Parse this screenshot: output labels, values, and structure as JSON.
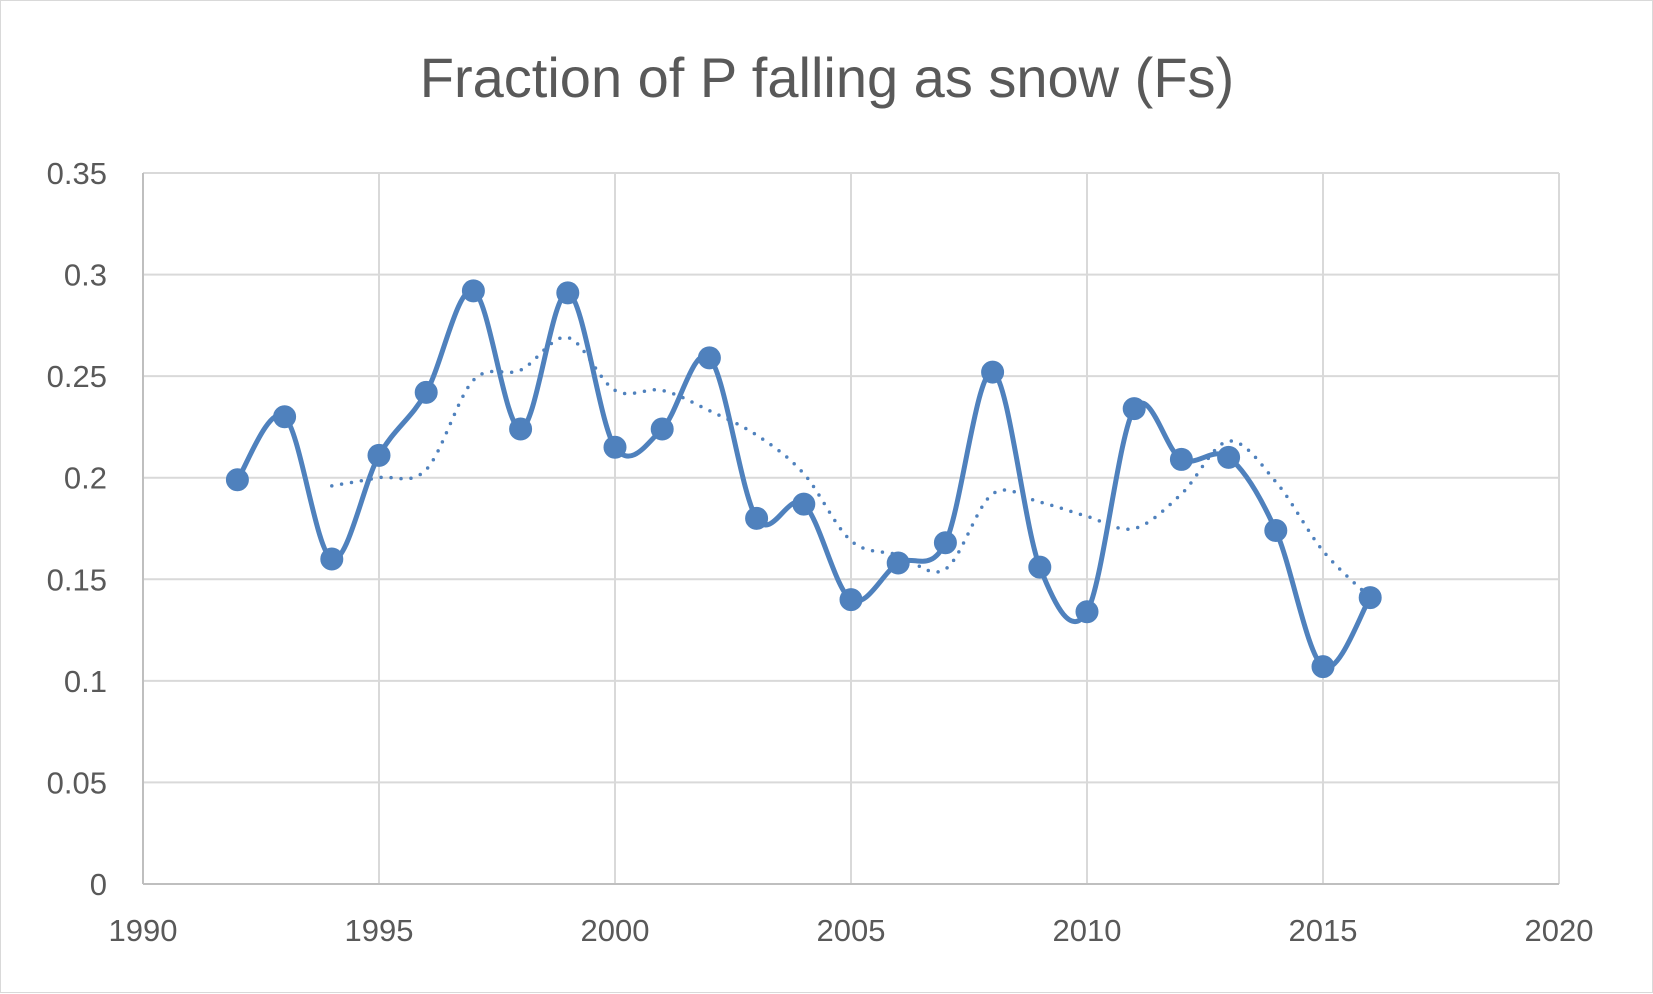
{
  "chart_data": {
    "type": "line",
    "title": "Fraction of P falling as snow (Fs)",
    "xlabel": "",
    "ylabel": "",
    "xlim": [
      1990,
      2020
    ],
    "ylim": [
      0,
      0.35
    ],
    "xticks": [
      1990,
      1995,
      2000,
      2005,
      2010,
      2015,
      2020
    ],
    "yticks": [
      0,
      0.05,
      0.1,
      0.15,
      0.2,
      0.25,
      0.3,
      0.35
    ],
    "xtick_labels": [
      "1990",
      "1995",
      "2000",
      "2005",
      "2010",
      "2015",
      "2020"
    ],
    "ytick_labels": [
      "0",
      "0.05",
      "0.1",
      "0.15",
      "0.2",
      "0.25",
      "0.3",
      "0.35"
    ],
    "grid": true,
    "legend": "none",
    "series": [
      {
        "style": "smoothed line with circle markers",
        "color": "#4f81bd",
        "x": [
          1992,
          1993,
          1994,
          1995,
          1996,
          1997,
          1998,
          1999,
          2000,
          2001,
          2002,
          2003,
          2004,
          2005,
          2006,
          2007,
          2008,
          2009,
          2010,
          2011,
          2012,
          2013,
          2014,
          2015,
          2016
        ],
        "y": [
          0.199,
          0.23,
          0.16,
          0.211,
          0.242,
          0.292,
          0.224,
          0.291,
          0.215,
          0.224,
          0.259,
          0.18,
          0.187,
          0.14,
          0.158,
          0.168,
          0.252,
          0.156,
          0.134,
          0.234,
          0.209,
          0.21,
          0.174,
          0.107,
          0.141
        ]
      },
      {
        "style": "dotted smoothed trend line (3-point moving average)",
        "color": "#4f81bd",
        "x": [
          1994,
          1995,
          1996,
          1997,
          1998,
          1999,
          2000,
          2001,
          2002,
          2003,
          2004,
          2005,
          2006,
          2007,
          2008,
          2009,
          2010,
          2011,
          2012,
          2013,
          2014,
          2015,
          2016
        ],
        "y": [
          0.196,
          0.2,
          0.204,
          0.248,
          0.253,
          0.269,
          0.243,
          0.243,
          0.233,
          0.221,
          0.202,
          0.169,
          0.162,
          0.155,
          0.192,
          0.188,
          0.181,
          0.175,
          0.192,
          0.218,
          0.198,
          0.164,
          0.141
        ]
      }
    ]
  }
}
